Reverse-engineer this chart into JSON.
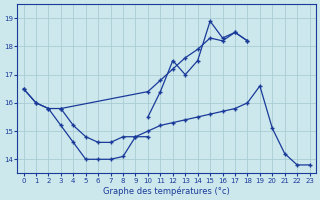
{
  "title": "Graphe des températures (°c)",
  "bg_color": "#cce8ec",
  "grid_color": "#aaccd4",
  "line_color": "#1a3a9a",
  "xlim": [
    -0.5,
    23.5
  ],
  "ylim": [
    13.5,
    19.5
  ],
  "xticks": [
    0,
    1,
    2,
    3,
    4,
    5,
    6,
    7,
    8,
    9,
    10,
    11,
    12,
    13,
    14,
    15,
    16,
    17,
    18,
    19,
    20,
    21,
    22,
    23
  ],
  "yticks": [
    14,
    15,
    16,
    17,
    18,
    19
  ],
  "series": [
    {
      "x": [
        0,
        1,
        2,
        3,
        10,
        11,
        12,
        13,
        14,
        15,
        16,
        17,
        18
      ],
      "y": [
        16.5,
        16.0,
        15.8,
        15.8,
        16.4,
        16.8,
        17.2,
        17.6,
        17.9,
        18.3,
        18.2,
        18.5,
        18.2
      ]
    },
    {
      "x": [
        10,
        11,
        12,
        13,
        14,
        15,
        16,
        17,
        18
      ],
      "y": [
        15.5,
        16.4,
        17.5,
        17.0,
        17.5,
        18.9,
        18.3,
        18.5,
        18.2
      ]
    },
    {
      "x": [
        0,
        1,
        2,
        3,
        4,
        5,
        6,
        7,
        8,
        9,
        10
      ],
      "y": [
        16.5,
        16.0,
        15.8,
        15.2,
        14.6,
        14.0,
        14.0,
        14.0,
        14.1,
        14.8,
        14.8
      ]
    },
    {
      "x": [
        3,
        4,
        5,
        6,
        7,
        8,
        9,
        10,
        11,
        12,
        13,
        14,
        15,
        16,
        17,
        18,
        19,
        20,
        21,
        22,
        23
      ],
      "y": [
        15.8,
        15.2,
        14.8,
        14.6,
        14.6,
        14.8,
        14.8,
        15.0,
        15.2,
        15.3,
        15.4,
        15.5,
        15.6,
        15.7,
        15.8,
        16.0,
        16.6,
        15.1,
        14.2,
        13.8,
        13.8
      ]
    }
  ],
  "marker": "+",
  "markersize": 3.5,
  "linewidth": 0.9
}
